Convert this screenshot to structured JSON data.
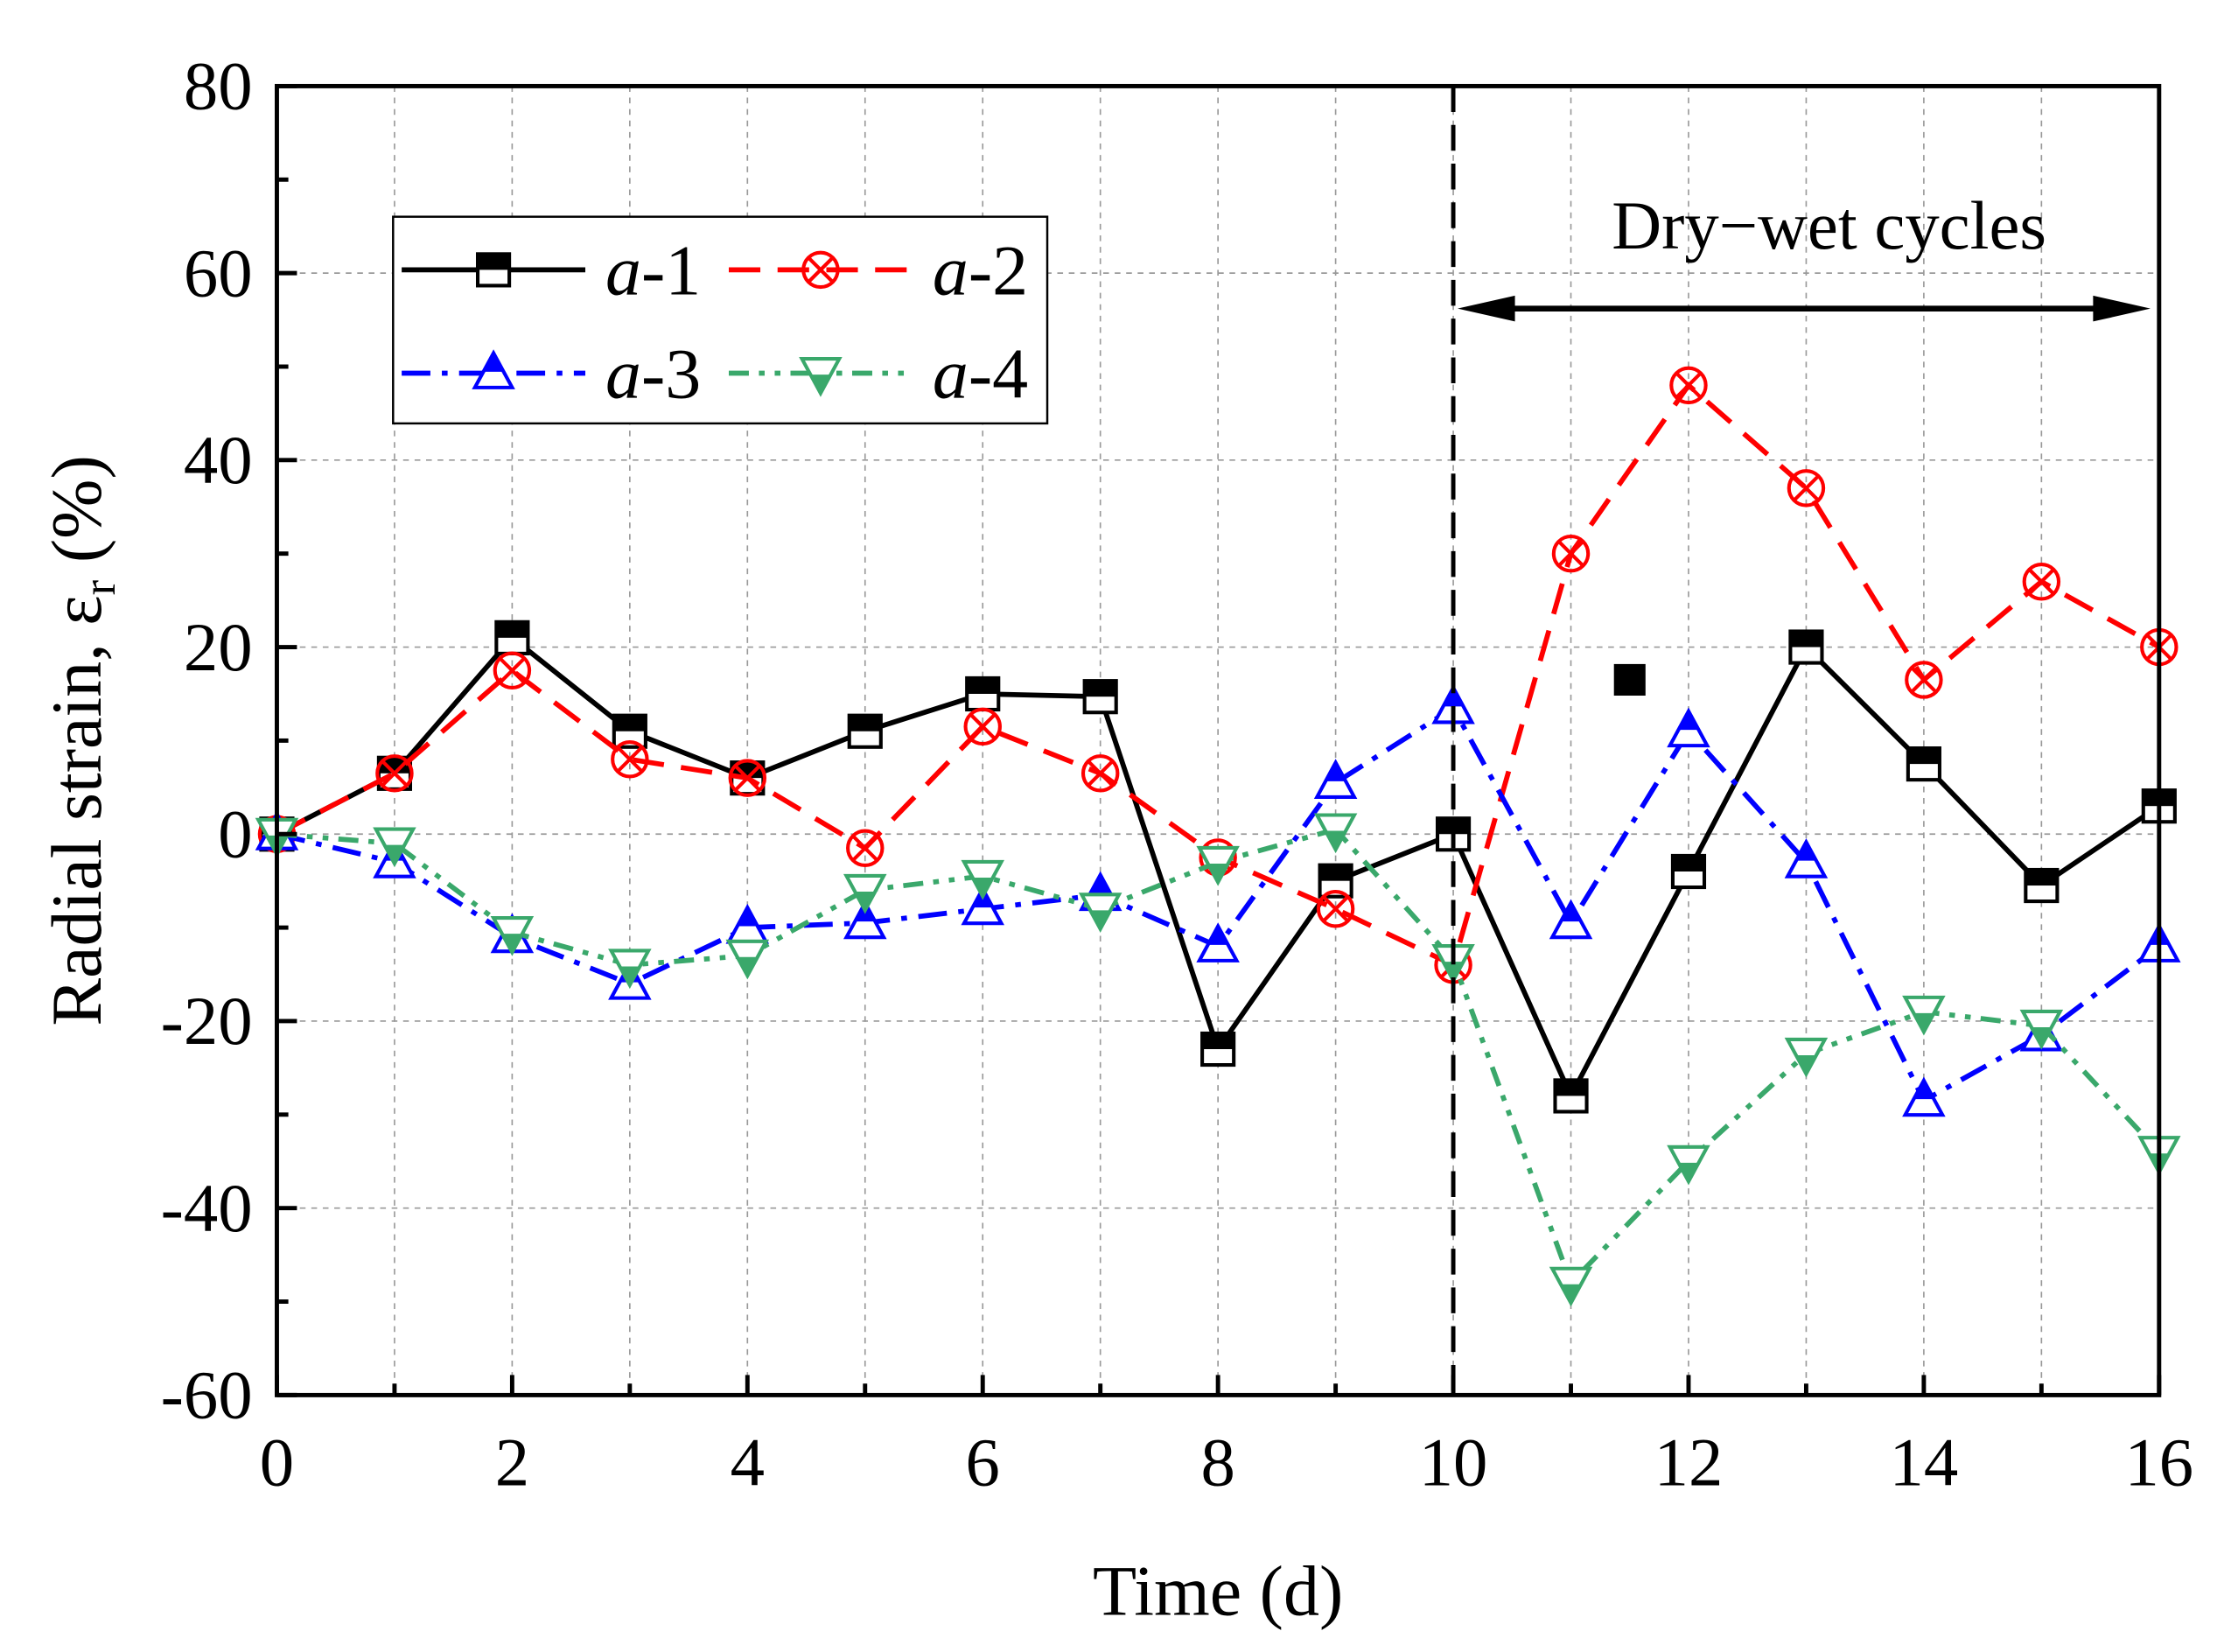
{
  "chart_data": {
    "type": "line",
    "xlabel": "Time (d)",
    "ylabel": "Radial strain, ε",
    "ylabel_subscript": "r",
    "ylabel_unit": "(%)",
    "xlim": [
      0,
      16
    ],
    "ylim": [
      -60,
      80
    ],
    "xticks": [
      "0",
      "2",
      "4",
      "6",
      "8",
      "10",
      "12",
      "14",
      "16"
    ],
    "yticks": [
      "80",
      "60",
      "40",
      "20",
      "0",
      "-20",
      "-40",
      "-60"
    ],
    "grid": true,
    "legend_placement": "top-left",
    "x": [
      0,
      1,
      2,
      3,
      4,
      5,
      6,
      7,
      8,
      9,
      10,
      11,
      12,
      13,
      14,
      15,
      16
    ],
    "series": [
      {
        "name": "a-1",
        "prefix": "a",
        "suffix": "-1",
        "color": "#000000",
        "marker": "square-half",
        "dash": "",
        "values": [
          0,
          6.5,
          21,
          11,
          6,
          11,
          15,
          14.7,
          -23,
          -5,
          0,
          -28,
          -4,
          20,
          7.5,
          -5.5,
          3
        ]
      },
      {
        "name": "a-2",
        "prefix": "a",
        "suffix": "-2",
        "color": "#ff0000",
        "marker": "circle-x",
        "dash": "22,12",
        "values": [
          0,
          6.5,
          17.5,
          8,
          6,
          -1.5,
          11.5,
          6.5,
          -2.5,
          -8,
          -14,
          30,
          48,
          37,
          16.5,
          27,
          20
        ]
      },
      {
        "name": "a-3",
        "prefix": "a",
        "suffix": "-3",
        "color": "#0000ff",
        "marker": "triangle-up",
        "dash": "20,8,4,8",
        "values": [
          0,
          -3,
          -11,
          -16,
          -10,
          -9.5,
          -8,
          -6.5,
          -12,
          5.5,
          13.5,
          -9.5,
          11,
          -3,
          -28.5,
          -21.5,
          -12
        ]
      },
      {
        "name": "a-4",
        "prefix": "a",
        "suffix": "-4",
        "color": "#3aa86b",
        "marker": "triangle-down",
        "dash": "14,7,4,7,4,7",
        "values": [
          0,
          -1,
          -10.5,
          -14,
          -13,
          -6,
          -4.5,
          -8,
          -3,
          0.5,
          -13.5,
          -48,
          -35,
          -23.5,
          -19,
          -20.5,
          -34
        ]
      }
    ],
    "annotations": {
      "vline_x": 10,
      "arrow_from": 10,
      "arrow_to": 16,
      "label": "Dry−wet cycles",
      "stray_marker": {
        "x": 11.5,
        "y": 16.5
      }
    }
  }
}
